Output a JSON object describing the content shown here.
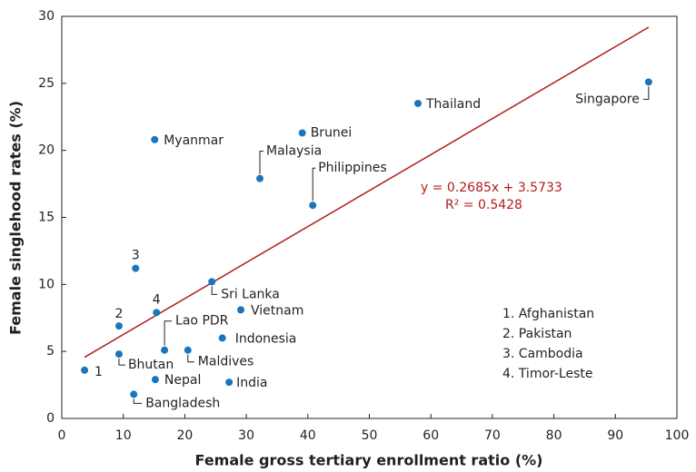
{
  "chart_data": {
    "type": "scatter",
    "xlabel": "Female gross tertiary enrollment ratio (%)",
    "ylabel": "Female singlehood rates (%)",
    "xlim": [
      0,
      100
    ],
    "ylim": [
      0,
      30
    ],
    "xticks": [
      0,
      10,
      20,
      30,
      40,
      50,
      60,
      70,
      80,
      90,
      100
    ],
    "yticks": [
      0,
      5,
      10,
      15,
      20,
      25,
      30
    ],
    "color": "#1a75bc",
    "x": [
      3.7,
      9.3,
      9.3,
      11.7,
      12.0,
      15.1,
      15.4,
      15.2,
      16.7,
      20.5,
      24.4,
      26.1,
      27.2,
      29.1,
      32.2,
      39.1,
      40.8,
      57.9,
      95.4
    ],
    "values": [
      3.6,
      6.9,
      4.8,
      1.8,
      11.2,
      20.8,
      7.9,
      2.9,
      5.1,
      5.1,
      10.2,
      6.0,
      2.7,
      8.1,
      17.9,
      21.3,
      15.9,
      23.5,
      25.1
    ],
    "point_labels": [
      "1",
      "2",
      "Bhutan",
      "Bangladesh",
      "3",
      "Myanmar",
      "4",
      "Nepal",
      "Lao PDR",
      "Maldives",
      "Sri Lanka",
      "Indonesia",
      "India",
      "Vietnam",
      "Malaysia",
      "Brunei",
      "Philippines",
      "Thailand",
      "Singapore"
    ],
    "key": [
      "1. Afghanistan",
      "2. Pakistan",
      "3. Cambodia",
      "4. Timor-Leste"
    ],
    "trendline": {
      "color": "#b31b1b",
      "x": [
        3.7,
        95.4
      ],
      "y": [
        4.567,
        29.188
      ]
    },
    "equation": "y = 0.2685x + 3.5733",
    "r_squared": "R² = 0.5428"
  }
}
